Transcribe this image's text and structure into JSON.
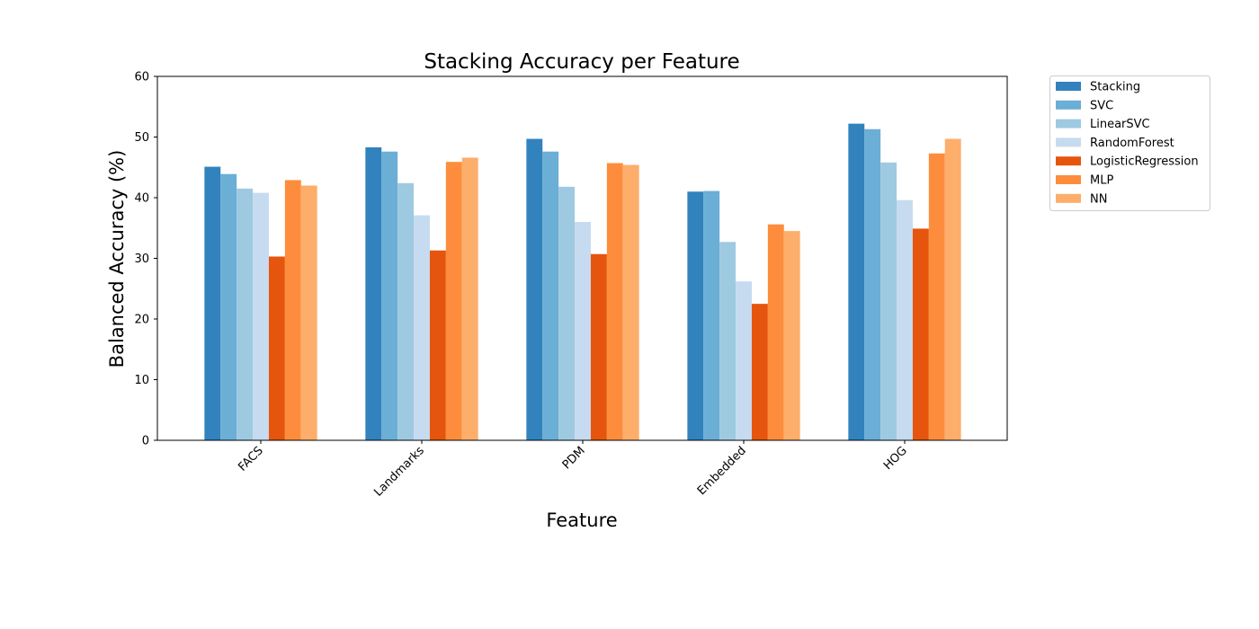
{
  "chart_data": {
    "type": "bar",
    "title": "Stacking Accuracy per Feature",
    "xlabel": "Feature",
    "ylabel": "Balanced Accuracy (%)",
    "ylim": [
      0,
      60
    ],
    "yticks": [
      0,
      10,
      20,
      30,
      40,
      50,
      60
    ],
    "categories": [
      "FACS",
      "Landmarks",
      "PDM",
      "Embedded",
      "HOG"
    ],
    "legend_position": "outside-top-right",
    "grid": false,
    "series": [
      {
        "name": "Stacking",
        "color": "#3182bd",
        "values": [
          45.1,
          48.3,
          49.7,
          41.0,
          52.2
        ]
      },
      {
        "name": "SVC",
        "color": "#6baed6",
        "values": [
          43.9,
          47.6,
          47.6,
          41.1,
          51.3
        ]
      },
      {
        "name": "LinearSVC",
        "color": "#9ecae1",
        "values": [
          41.5,
          42.4,
          41.8,
          32.7,
          45.8
        ]
      },
      {
        "name": "RandomForest",
        "color": "#c6dbef",
        "values": [
          40.8,
          37.1,
          36.0,
          26.2,
          39.6
        ]
      },
      {
        "name": "LogisticRegression",
        "color": "#e6550d",
        "values": [
          30.3,
          31.3,
          30.7,
          22.5,
          34.9
        ]
      },
      {
        "name": "MLP",
        "color": "#fd8d3c",
        "values": [
          42.9,
          45.9,
          45.7,
          35.6,
          47.3
        ]
      },
      {
        "name": "NN",
        "color": "#fdae6b",
        "values": [
          42.0,
          46.6,
          45.4,
          34.5,
          49.7
        ]
      }
    ]
  }
}
